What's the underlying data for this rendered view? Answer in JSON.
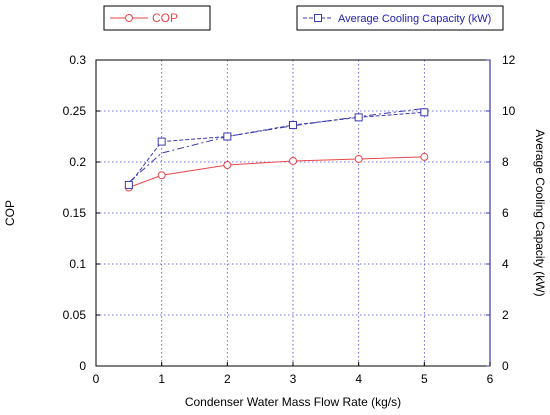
{
  "chart_data": {
    "type": "line",
    "xlabel": "Condenser Water Mass Flow Rate (kg/s)",
    "ylabel": "COP",
    "y2label": "Average Cooling Capacity (kW)",
    "xlim": [
      0,
      6
    ],
    "ylim": [
      0,
      0.3
    ],
    "y2lim": [
      0,
      12
    ],
    "grid": true,
    "x_ticks": [
      "0",
      "1",
      "2",
      "3",
      "4",
      "5",
      "6"
    ],
    "y_ticks": [
      "0",
      "0.05",
      "0.1",
      "0.15",
      "0.2",
      "0.25",
      "0.3"
    ],
    "y2_ticks": [
      "0",
      "2",
      "4",
      "6",
      "8",
      "10",
      "12"
    ],
    "series": [
      {
        "name": "COP",
        "axis": "left",
        "color": "#e8474b",
        "marker": "circle",
        "x": [
          0.5,
          1,
          2,
          3,
          4,
          5
        ],
        "values": [
          0.175,
          0.187,
          0.197,
          0.201,
          0.203,
          0.205
        ]
      },
      {
        "name": "Average Cooling Capacity (kW)",
        "axis": "right",
        "color": "#3a3ab0",
        "marker": "square",
        "x": [
          0.5,
          1,
          2,
          3,
          4,
          5
        ],
        "values": [
          7.1,
          8.8,
          9.0,
          9.45,
          9.75,
          9.95
        ],
        "trendline_values": [
          7.2,
          8.35,
          9.0,
          9.42,
          9.78,
          10.1
        ]
      }
    ],
    "legend": [
      {
        "label": "COP",
        "placement": "top-left",
        "color": "#e8474b"
      },
      {
        "label": "Average Cooling Capacity (kW)",
        "placement": "top-right",
        "color": "#1f1fb0"
      }
    ]
  }
}
